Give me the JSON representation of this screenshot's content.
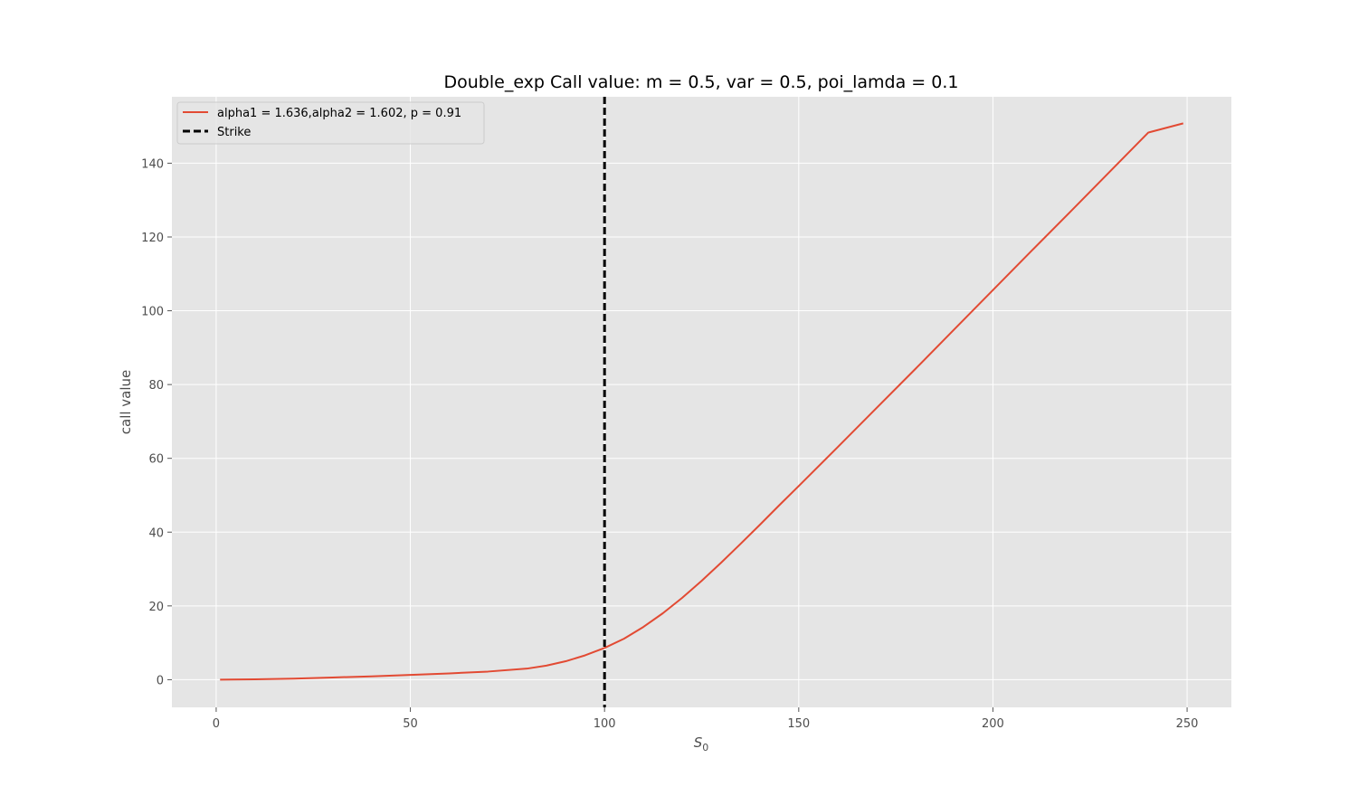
{
  "chart_data": {
    "type": "line",
    "title": "Double_exp Call value:  m = 0.5, var = 0.5, poi_lamda = 0.1",
    "xlabel": "S",
    "xlabel_sub": "0",
    "ylabel": "call value",
    "xlim": [
      -11.4,
      261.4
    ],
    "ylim": [
      -7.5,
      158
    ],
    "xticks": [
      0,
      50,
      100,
      150,
      200,
      250
    ],
    "yticks": [
      0,
      20,
      40,
      60,
      80,
      100,
      120,
      140
    ],
    "grid": true,
    "legend_placement": "upper-left",
    "series": [
      {
        "name": "alpha1 = 1.636,alpha2 = 1.602, p = 0.91",
        "color": "#e24a33",
        "style": "solid",
        "x": [
          1,
          10,
          20,
          30,
          40,
          50,
          60,
          70,
          80,
          85,
          90,
          95,
          100,
          105,
          110,
          115,
          120,
          125,
          130,
          135,
          140,
          145,
          150,
          160,
          170,
          180,
          190,
          200,
          210,
          220,
          230,
          240,
          249
        ],
        "y": [
          0.0,
          0.1,
          0.3,
          0.6,
          0.9,
          1.3,
          1.7,
          2.2,
          3.0,
          3.8,
          5.0,
          6.6,
          8.6,
          11.1,
          14.3,
          18.0,
          22.2,
          26.8,
          31.7,
          36.8,
          42.0,
          47.3,
          52.5,
          63.0,
          73.6,
          84.2,
          94.9,
          105.6,
          116.3,
          126.9,
          137.6,
          148.3,
          150.8
        ]
      },
      {
        "name": "Strike",
        "color": "#000000",
        "style": "dashed",
        "vline_x": 100
      }
    ]
  }
}
